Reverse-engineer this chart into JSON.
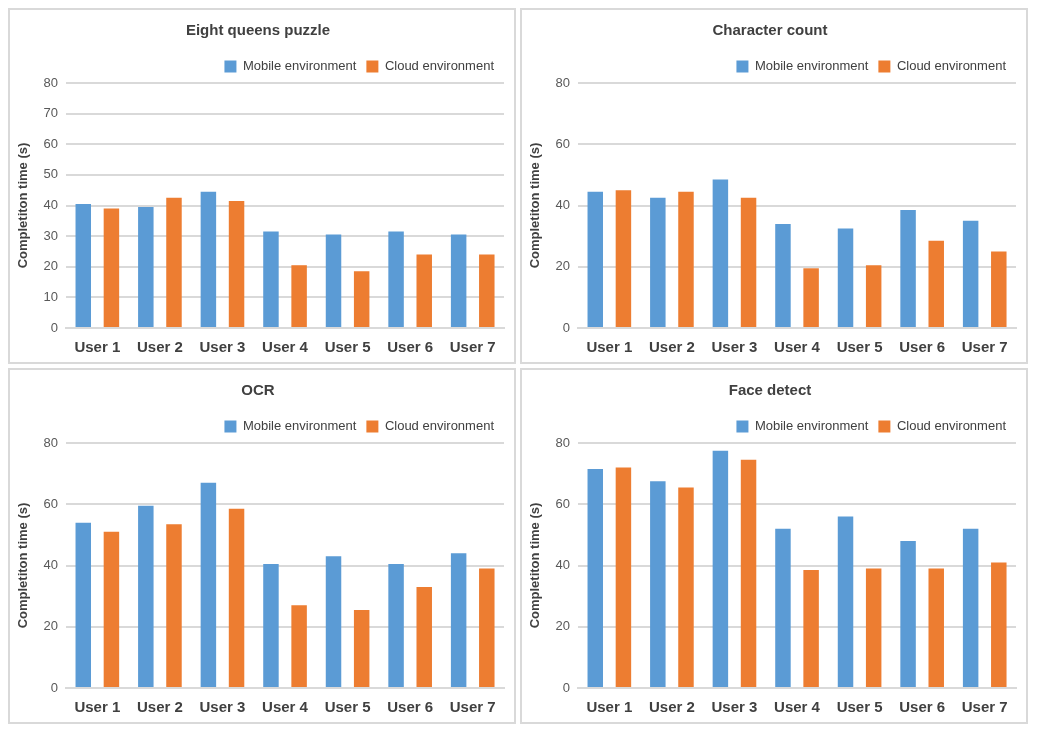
{
  "chart_data": [
    {
      "type": "bar",
      "title": "Eight queens puzzle",
      "ylabel": "Completiton time (s)",
      "categories": [
        "User 1",
        "User 2",
        "User 3",
        "User 4",
        "User 5",
        "User 6",
        "User 7"
      ],
      "series": [
        {
          "name": "Mobile environment",
          "color": "#5b9bd5",
          "values": [
            40.5,
            39.5,
            44.5,
            31.5,
            30.5,
            31.5,
            30.5
          ]
        },
        {
          "name": "Cloud environment",
          "color": "#ed7d31",
          "values": [
            39,
            42.5,
            41.5,
            20.5,
            18.5,
            24,
            24
          ]
        }
      ],
      "ylim": [
        0,
        80
      ],
      "yticks": [
        0,
        10,
        20,
        30,
        40,
        50,
        60,
        70,
        80
      ],
      "grid": "y",
      "legend": "top right"
    },
    {
      "type": "bar",
      "title": "Character count",
      "ylabel": "Completiton time (s)",
      "categories": [
        "User 1",
        "User 2",
        "User 3",
        "User 4",
        "User 5",
        "User 6",
        "User 7"
      ],
      "series": [
        {
          "name": "Mobile environment",
          "color": "#5b9bd5",
          "values": [
            44.5,
            42.5,
            48.5,
            34,
            32.5,
            38.5,
            35
          ]
        },
        {
          "name": "Cloud environment",
          "color": "#ed7d31",
          "values": [
            45,
            44.5,
            42.5,
            19.5,
            20.5,
            28.5,
            25
          ]
        }
      ],
      "ylim": [
        0,
        80
      ],
      "yticks": [
        0,
        20,
        40,
        60,
        80
      ],
      "grid": "y",
      "legend": "top right"
    },
    {
      "type": "bar",
      "title": "OCR",
      "ylabel": "Completiton time (s)",
      "categories": [
        "User 1",
        "User 2",
        "User 3",
        "User 4",
        "User 5",
        "User 6",
        "User 7"
      ],
      "series": [
        {
          "name": "Mobile environment",
          "color": "#5b9bd5",
          "values": [
            54,
            59.5,
            67,
            40.5,
            43,
            40.5,
            44
          ]
        },
        {
          "name": "Cloud environment",
          "color": "#ed7d31",
          "values": [
            51,
            53.5,
            58.5,
            27,
            25.5,
            33,
            39
          ]
        }
      ],
      "ylim": [
        0,
        80
      ],
      "yticks": [
        0,
        20,
        40,
        60,
        80
      ],
      "grid": "y",
      "legend": "top right"
    },
    {
      "type": "bar",
      "title": "Face detect",
      "ylabel": "Completiton time (s)",
      "categories": [
        "User 1",
        "User 2",
        "User 3",
        "User 4",
        "User 5",
        "User 6",
        "User 7"
      ],
      "series": [
        {
          "name": "Mobile environment",
          "color": "#5b9bd5",
          "values": [
            71.5,
            67.5,
            77.5,
            52,
            56,
            48,
            52
          ]
        },
        {
          "name": "Cloud environment",
          "color": "#ed7d31",
          "values": [
            72,
            65.5,
            74.5,
            38.5,
            39,
            39,
            41
          ]
        }
      ],
      "ylim": [
        0,
        80
      ],
      "yticks": [
        0,
        20,
        40,
        60,
        80
      ],
      "grid": "y",
      "legend": "top right"
    }
  ]
}
